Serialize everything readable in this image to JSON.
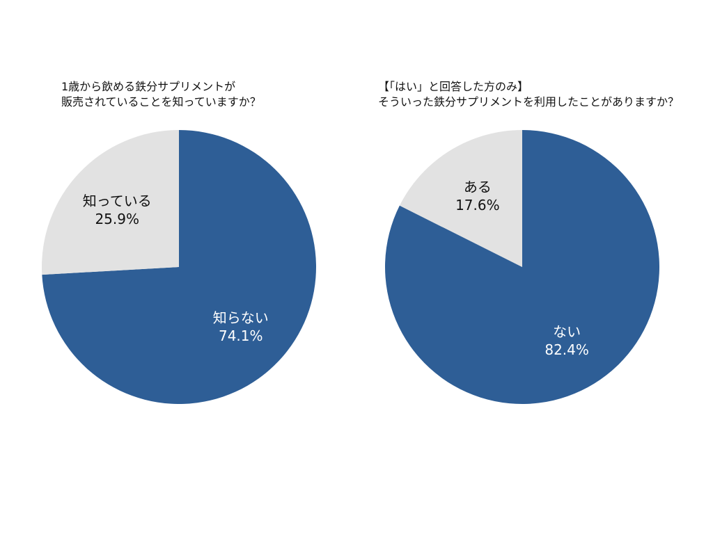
{
  "chart_data": [
    {
      "type": "pie",
      "title_lines": [
        "1歳から飲める鉄分サプリメントが",
        "販売されていることを知っていますか？"
      ],
      "slices": [
        {
          "label": "知らない",
          "value": 74.1,
          "value_label": "74.1%",
          "color": "#2e5e96",
          "text_color": "#ffffff"
        },
        {
          "label": "知っている",
          "value": 25.9,
          "value_label": "25.9%",
          "color": "#e2e2e2",
          "text_color": "#111111"
        }
      ],
      "start": "12 o'clock",
      "direction": "clockwise"
    },
    {
      "type": "pie",
      "title_lines": [
        "【「はい」と回答した方のみ】",
        "そういった鉄分サプリメントを利用したことがありますか？"
      ],
      "slices": [
        {
          "label": "ない",
          "value": 82.4,
          "value_label": "82.4%",
          "color": "#2e5e96",
          "text_color": "#ffffff"
        },
        {
          "label": "ある",
          "value": 17.6,
          "value_label": "17.6%",
          "color": "#e2e2e2",
          "text_color": "#111111"
        }
      ],
      "start": "12 o'clock",
      "direction": "clockwise"
    }
  ]
}
